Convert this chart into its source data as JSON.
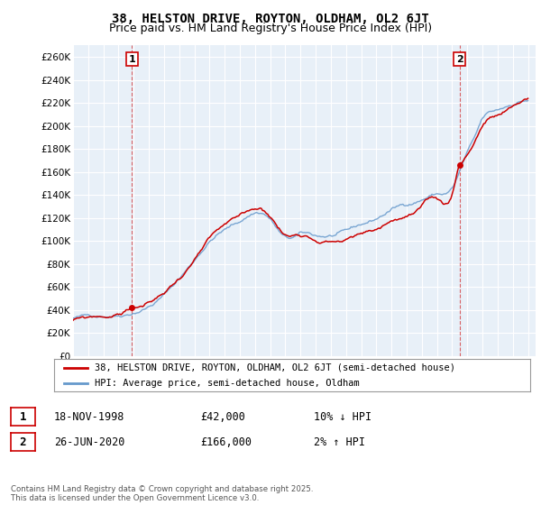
{
  "title": "38, HELSTON DRIVE, ROYTON, OLDHAM, OL2 6JT",
  "subtitle": "Price paid vs. HM Land Registry's House Price Index (HPI)",
  "ylim": [
    0,
    270000
  ],
  "yticks": [
    0,
    20000,
    40000,
    60000,
    80000,
    100000,
    120000,
    140000,
    160000,
    180000,
    200000,
    220000,
    240000,
    260000
  ],
  "xlim_start": 1995.0,
  "xlim_end": 2025.5,
  "background_color": "#ffffff",
  "chart_bg_color": "#e8f0f8",
  "grid_color": "#ffffff",
  "hpi_color": "#6699cc",
  "price_color": "#cc0000",
  "purchase1_date": 1998.88,
  "purchase1_price": 42000,
  "purchase2_date": 2020.48,
  "purchase2_price": 166000,
  "legend_label1": "38, HELSTON DRIVE, ROYTON, OLDHAM, OL2 6JT (semi-detached house)",
  "legend_label2": "HPI: Average price, semi-detached house, Oldham",
  "annotation1_label": "1",
  "annotation2_label": "2",
  "table_row1": [
    "1",
    "18-NOV-1998",
    "£42,000",
    "10% ↓ HPI"
  ],
  "table_row2": [
    "2",
    "26-JUN-2020",
    "£166,000",
    "2% ↑ HPI"
  ],
  "footer": "Contains HM Land Registry data © Crown copyright and database right 2025.\nThis data is licensed under the Open Government Licence v3.0.",
  "title_fontsize": 10,
  "subtitle_fontsize": 9,
  "tick_fontsize": 7.5,
  "legend_fontsize": 8
}
